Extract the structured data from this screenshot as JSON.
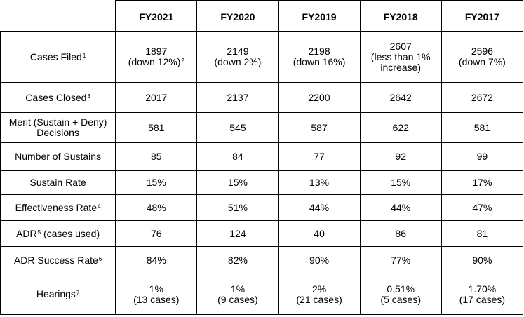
{
  "years": [
    "FY2021",
    "FY2020",
    "FY2019",
    "FY2018",
    "FY2017"
  ],
  "rows": [
    {
      "label": "Cases Filed",
      "note": "1",
      "cells": [
        {
          "main": "1897",
          "sub": "(down 12%)",
          "note": "2"
        },
        {
          "main": "2149",
          "sub": "(down 2%)"
        },
        {
          "main": "2198",
          "sub": "(down 16%)"
        },
        {
          "main": "2607",
          "sub": "(less than 1%",
          "sub2": "increase)"
        },
        {
          "main": "2596",
          "sub": "(down 7%)"
        }
      ]
    },
    {
      "label": "Cases Closed",
      "note": "3",
      "cells": [
        {
          "main": "2017"
        },
        {
          "main": "2137"
        },
        {
          "main": "2200"
        },
        {
          "main": "2642"
        },
        {
          "main": "2672"
        }
      ]
    },
    {
      "label": "Merit (Sustain + Deny)",
      "label2": "Decisions",
      "cells": [
        {
          "main": "581"
        },
        {
          "main": "545"
        },
        {
          "main": "587"
        },
        {
          "main": "622"
        },
        {
          "main": "581"
        }
      ]
    },
    {
      "label": "Number of Sustains",
      "cells": [
        {
          "main": "85"
        },
        {
          "main": "84"
        },
        {
          "main": "77"
        },
        {
          "main": "92"
        },
        {
          "main": "99"
        }
      ]
    },
    {
      "label": "Sustain Rate",
      "cells": [
        {
          "main": "15%"
        },
        {
          "main": "15%"
        },
        {
          "main": "13%"
        },
        {
          "main": "15%"
        },
        {
          "main": "17%"
        }
      ]
    },
    {
      "label": "Effectiveness Rate",
      "note": "4",
      "cells": [
        {
          "main": "48%"
        },
        {
          "main": "51%"
        },
        {
          "main": "44%"
        },
        {
          "main": "44%"
        },
        {
          "main": "47%"
        }
      ]
    },
    {
      "label": "ADR",
      "note": "5",
      "label_suffix": " (cases used)",
      "cells": [
        {
          "main": "76"
        },
        {
          "main": "124"
        },
        {
          "main": "40"
        },
        {
          "main": "86"
        },
        {
          "main": "81"
        }
      ]
    },
    {
      "label": "ADR Success Rate",
      "note": "6",
      "cells": [
        {
          "main": "84%"
        },
        {
          "main": "82%"
        },
        {
          "main": "90%"
        },
        {
          "main": "77%"
        },
        {
          "main": "90%"
        }
      ]
    },
    {
      "label": "Hearings",
      "note": "7",
      "cells": [
        {
          "main": "1%",
          "sub": "(13 cases)"
        },
        {
          "main": "1%",
          "sub": "(9 cases)"
        },
        {
          "main": "2%",
          "sub": "(21 cases)"
        },
        {
          "main": "0.51%",
          "sub": "(5 cases)"
        },
        {
          "main": "1.70%",
          "sub": "(17 cases)"
        }
      ]
    }
  ]
}
